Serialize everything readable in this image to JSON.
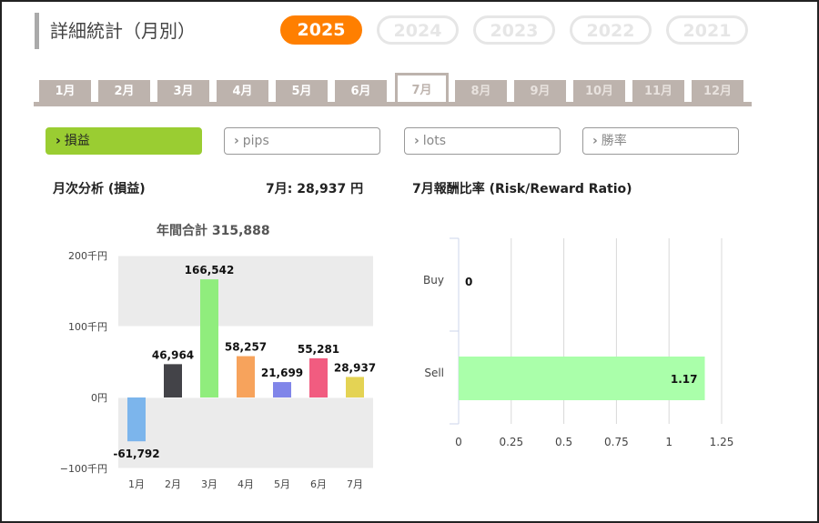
{
  "title": "詳細統計（月別）",
  "years": [
    "2025",
    "2024",
    "2023",
    "2022",
    "2021"
  ],
  "active_year": "2025",
  "months": [
    "1月",
    "2月",
    "3月",
    "4月",
    "5月",
    "6月",
    "7月",
    "8月",
    "9月",
    "10月",
    "11月",
    "12月"
  ],
  "active_month": "7月",
  "metrics": [
    {
      "chev": "›",
      "label": "損益"
    },
    {
      "chev": "›",
      "label": "pips"
    },
    {
      "chev": "›",
      "label": "lots"
    },
    {
      "chev": "›",
      "label": "勝率"
    }
  ],
  "monthly": {
    "heading": "月次分析 (損益)",
    "month_value": "7月:  28,937 円",
    "annual_total": "年間合計 315,888"
  },
  "rr": {
    "heading": "7月報酬比率 (Risk/Reward Ratio)"
  },
  "chart_data": [
    {
      "type": "bar",
      "title": "年間合計 315,888",
      "categories": [
        "1月",
        "2月",
        "3月",
        "4月",
        "5月",
        "6月",
        "7月"
      ],
      "values": [
        -61792,
        46964,
        166542,
        58257,
        21699,
        55281,
        28937
      ],
      "value_labels": [
        "-61,792",
        "46,964",
        "166,542",
        "58,257",
        "21,699",
        "55,281",
        "28,937"
      ],
      "colors": [
        "#7cb5ec",
        "#434348",
        "#90ed7d",
        "#f7a35c",
        "#8085e9",
        "#f15c80",
        "#e4d354"
      ],
      "ylim": [
        -100000,
        200000
      ],
      "yticks": [
        200000,
        100000,
        0,
        -100000
      ],
      "ytick_labels": [
        "200千円",
        "100千円",
        "0円",
        "−100千円"
      ]
    },
    {
      "type": "bar",
      "orientation": "horizontal",
      "categories": [
        "Buy",
        "Sell"
      ],
      "values": [
        0,
        1.17
      ],
      "value_labels": [
        "0",
        "1.17"
      ],
      "color": "#aaffaa",
      "xlim": [
        0,
        1.25
      ],
      "xticks": [
        0,
        0.25,
        0.5,
        0.75,
        1,
        1.25
      ],
      "xtick_labels": [
        "0",
        "0.25",
        "0.5",
        "0.75",
        "1",
        "1.25"
      ]
    }
  ]
}
